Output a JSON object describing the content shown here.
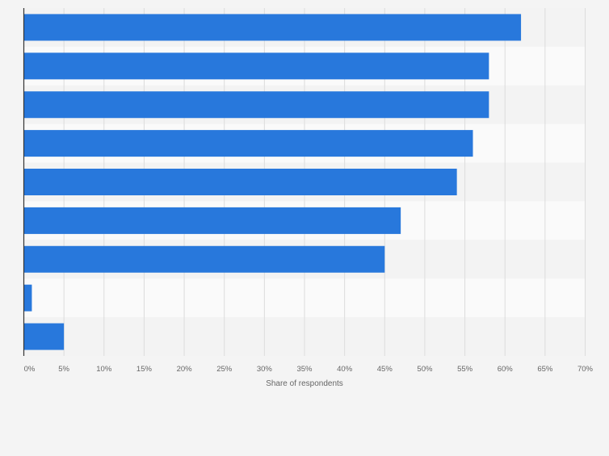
{
  "colors": {
    "bar": "#2878dc",
    "band_dark": "#f3f3f3",
    "band_light": "#fafafa",
    "grid": "#dcdcdc",
    "axis": "#333333",
    "tick_text": "#666666"
  },
  "chart_data": {
    "type": "bar",
    "orientation": "horizontal",
    "categories": [
      "",
      "",
      "",
      "",
      "",
      "",
      "",
      "",
      ""
    ],
    "values": [
      62,
      58,
      58,
      56,
      54,
      47,
      45,
      1,
      5
    ],
    "xlabel": "Share of respondents",
    "ylabel": "",
    "xlim": [
      0,
      70
    ],
    "xticks": [
      "0%",
      "5%",
      "10%",
      "15%",
      "20%",
      "25%",
      "30%",
      "35%",
      "40%",
      "45%",
      "50%",
      "55%",
      "60%",
      "65%",
      "70%"
    ],
    "grid": true,
    "legend": "none"
  }
}
